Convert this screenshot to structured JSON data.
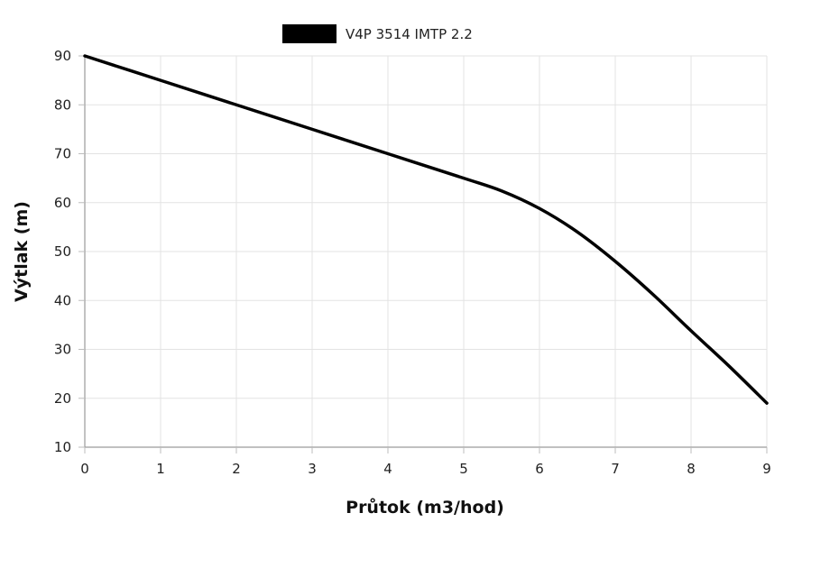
{
  "chart_data": {
    "type": "line",
    "title": "",
    "xlabel": "Průtok (m3/hod)",
    "ylabel": "Výtlak (m)",
    "xlim": [
      0,
      9
    ],
    "ylim": [
      10,
      90
    ],
    "x_ticks": [
      "0",
      "1",
      "2",
      "3",
      "4",
      "5",
      "6",
      "7",
      "8",
      "9"
    ],
    "y_ticks": [
      "10",
      "20",
      "30",
      "40",
      "50",
      "60",
      "70",
      "80",
      "90"
    ],
    "grid": true,
    "legend_position": "top-center",
    "series": [
      {
        "name": "V4P 3514 IMTP 2.2",
        "color": "#000000",
        "x": [
          0,
          1,
          2,
          3,
          4,
          5,
          5.5,
          6,
          6.5,
          7,
          7.5,
          8,
          8.5,
          9
        ],
        "y": [
          90,
          85,
          80,
          75,
          70,
          65,
          62.4,
          58.8,
          54,
          48,
          41.2,
          33.8,
          26.6,
          19
        ]
      }
    ]
  }
}
